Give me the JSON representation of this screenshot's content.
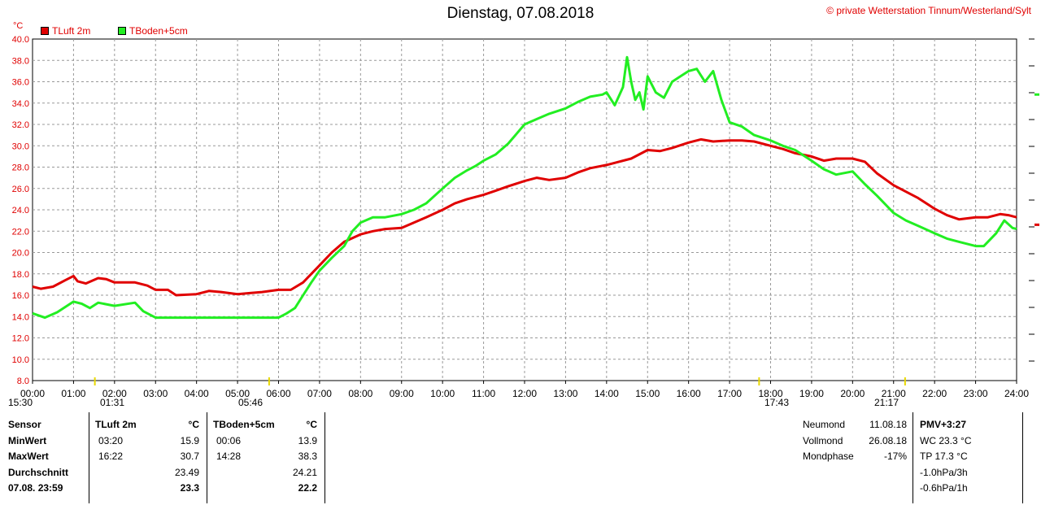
{
  "title": "Dienstag, 07.08.2018",
  "copyright": "© private Wetterstation Tinnum/Westerland/Sylt",
  "y_unit": "°C",
  "colors": {
    "tluft": "#e00000",
    "tboden": "#22ee22",
    "grid": "#999999",
    "accent": "#e00000"
  },
  "legend": [
    {
      "label": "TLuft 2m",
      "color": "#e00000"
    },
    {
      "label": "TBoden+5cm",
      "color": "#22ee22"
    }
  ],
  "sun_moon": [
    {
      "time": "15:30",
      "icon": "sunset-icon"
    },
    {
      "time": "01:31",
      "icon": "moonset-icon"
    },
    {
      "time": "05:46",
      "icon": "sunrise-icon"
    },
    {
      "time": "17:43",
      "icon": "moonrise-icon"
    },
    {
      "time": "21:17",
      "icon": "sunset-icon"
    }
  ],
  "chart_data": {
    "type": "line",
    "title": "Dienstag, 07.08.2018",
    "ylabel": "°C",
    "ylim": [
      8,
      40
    ],
    "xlim": [
      0,
      24
    ],
    "grid": true,
    "legend_position": "top-left",
    "y_ticks": [
      "8.0",
      "10.0",
      "12.0",
      "14.0",
      "16.0",
      "18.0",
      "20.0",
      "22.0",
      "24.0",
      "26.0",
      "28.0",
      "30.0",
      "32.0",
      "34.0",
      "36.0",
      "38.0",
      "40.0"
    ],
    "x_ticks": [
      "00:00",
      "01:00",
      "02:00",
      "03:00",
      "04:00",
      "05:00",
      "06:00",
      "07:00",
      "08:00",
      "09:00",
      "10:00",
      "11:00",
      "12:00",
      "13:00",
      "14:00",
      "15:00",
      "16:00",
      "17:00",
      "18:00",
      "19:00",
      "20:00",
      "21:00",
      "22:00",
      "23:00",
      "24:00"
    ],
    "series": [
      {
        "name": "TLuft 2m",
        "color": "#e00000",
        "x": [
          0,
          0.2,
          0.5,
          0.8,
          1.0,
          1.1,
          1.3,
          1.6,
          1.8,
          2.0,
          2.5,
          2.8,
          3.0,
          3.3,
          3.5,
          4.0,
          4.3,
          4.6,
          5.0,
          5.3,
          5.6,
          6.0,
          6.3,
          6.6,
          6.8,
          7.0,
          7.3,
          7.6,
          8.0,
          8.3,
          8.6,
          9.0,
          9.3,
          9.6,
          10.0,
          10.3,
          10.6,
          11.0,
          11.3,
          11.6,
          12.0,
          12.3,
          12.6,
          13.0,
          13.3,
          13.6,
          14.0,
          14.3,
          14.6,
          15.0,
          15.3,
          15.6,
          16.0,
          16.3,
          16.6,
          17.0,
          17.3,
          17.6,
          18.0,
          18.3,
          18.6,
          19.0,
          19.3,
          19.6,
          20.0,
          20.3,
          20.6,
          21.0,
          21.3,
          21.6,
          22.0,
          22.3,
          22.6,
          23.0,
          23.3,
          23.6,
          23.8,
          24.0
        ],
        "y": [
          16.8,
          16.6,
          16.8,
          17.4,
          17.8,
          17.3,
          17.1,
          17.6,
          17.5,
          17.2,
          17.2,
          16.9,
          16.5,
          16.5,
          16.0,
          16.1,
          16.4,
          16.3,
          16.1,
          16.2,
          16.3,
          16.5,
          16.5,
          17.2,
          18.0,
          18.8,
          20.0,
          21.0,
          21.7,
          22.0,
          22.2,
          22.3,
          22.8,
          23.3,
          24.0,
          24.6,
          25.0,
          25.4,
          25.8,
          26.2,
          26.7,
          27.0,
          26.8,
          27.0,
          27.5,
          27.9,
          28.2,
          28.5,
          28.8,
          29.6,
          29.5,
          29.8,
          30.3,
          30.6,
          30.4,
          30.5,
          30.5,
          30.4,
          30.0,
          29.7,
          29.3,
          29.0,
          28.6,
          28.8,
          28.8,
          28.5,
          27.4,
          26.3,
          25.7,
          25.1,
          24.1,
          23.5,
          23.1,
          23.3,
          23.3,
          23.6,
          23.5,
          23.3
        ]
      },
      {
        "name": "TBoden+5cm",
        "color": "#22ee22",
        "x": [
          0,
          0.3,
          0.6,
          1.0,
          1.2,
          1.4,
          1.6,
          2.0,
          2.5,
          2.7,
          3.0,
          3.5,
          4.0,
          4.5,
          5.0,
          5.5,
          6.0,
          6.2,
          6.4,
          6.6,
          6.8,
          7.0,
          7.3,
          7.6,
          7.8,
          8.0,
          8.3,
          8.6,
          9.0,
          9.3,
          9.6,
          10.0,
          10.3,
          10.6,
          10.8,
          11.0,
          11.3,
          11.6,
          11.8,
          12.0,
          12.3,
          12.6,
          13.0,
          13.3,
          13.6,
          13.9,
          14.0,
          14.2,
          14.4,
          14.5,
          14.6,
          14.7,
          14.8,
          14.9,
          15.0,
          15.2,
          15.4,
          15.6,
          15.8,
          16.0,
          16.2,
          16.4,
          16.6,
          16.8,
          17.0,
          17.3,
          17.6,
          18.0,
          18.3,
          18.6,
          19.0,
          19.3,
          19.6,
          20.0,
          20.3,
          20.6,
          21.0,
          21.3,
          21.6,
          22.0,
          22.3,
          22.6,
          23.0,
          23.2,
          23.5,
          23.7,
          23.9,
          24.0
        ],
        "y": [
          14.3,
          13.9,
          14.4,
          15.4,
          15.2,
          14.8,
          15.3,
          15.0,
          15.3,
          14.5,
          13.9,
          13.9,
          13.9,
          13.9,
          13.9,
          13.9,
          13.9,
          14.3,
          14.8,
          16.0,
          17.2,
          18.3,
          19.5,
          20.6,
          22.0,
          22.8,
          23.3,
          23.3,
          23.6,
          24.0,
          24.6,
          26.0,
          27.0,
          27.7,
          28.1,
          28.6,
          29.2,
          30.2,
          31.1,
          32.0,
          32.5,
          33.0,
          33.5,
          34.1,
          34.6,
          34.8,
          35.0,
          33.8,
          35.5,
          38.3,
          36.0,
          34.3,
          35.0,
          33.4,
          36.5,
          35.0,
          34.5,
          36.0,
          36.5,
          37.0,
          37.2,
          36.0,
          37.0,
          34.3,
          32.2,
          31.8,
          31.0,
          30.5,
          30.0,
          29.6,
          28.6,
          27.8,
          27.3,
          27.6,
          26.4,
          25.3,
          23.7,
          23.0,
          22.5,
          21.8,
          21.3,
          21.0,
          20.6,
          20.6,
          21.8,
          23.0,
          22.3,
          22.2
        ]
      }
    ]
  },
  "stats": {
    "headers": {
      "sensor": "Sensor",
      "s1": "TLuft 2m",
      "s1_unit": "°C",
      "s2": "TBoden+5cm",
      "s2_unit": "°C"
    },
    "rows": [
      {
        "label": "MinWert",
        "t1": "03:20",
        "v1": "15.9",
        "t2": "00:06",
        "v2": "13.9"
      },
      {
        "label": "MaxWert",
        "t1": "16:22",
        "v1": "30.7",
        "t2": "14:28",
        "v2": "38.3"
      },
      {
        "label": "Durchschnitt",
        "t1": "",
        "v1": "23.49",
        "t2": "",
        "v2": "24.21"
      },
      {
        "label": "07.08. 23:59",
        "t1": "",
        "v1": "23.3",
        "t2": "",
        "v2": "22.2"
      }
    ]
  },
  "moon": [
    {
      "label": "Neumond",
      "value": "11.08.18"
    },
    {
      "label": "Vollmond",
      "value": "26.08.18"
    },
    {
      "label": "Mondphase",
      "value": "-17%"
    }
  ],
  "extra": {
    "pmv": "PMV+3:27",
    "wc": "WC 23.3 °C",
    "tp": "TP 17.3 °C",
    "p3h": "-1.0hPa/3h",
    "p1h": "-0.6hPa/1h"
  }
}
